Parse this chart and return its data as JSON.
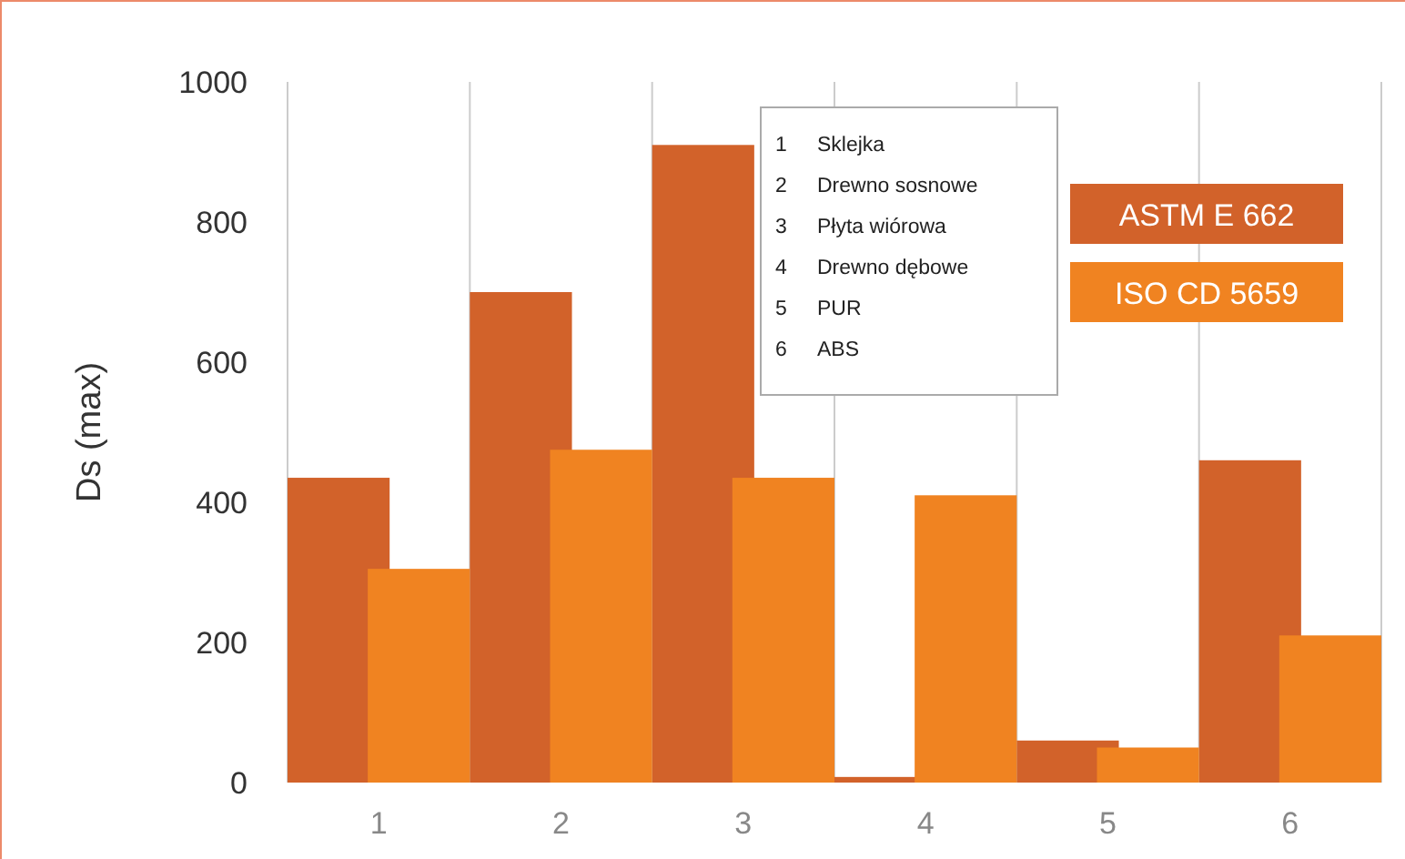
{
  "chart_data": {
    "type": "bar",
    "ylabel": "Ds (max)",
    "categories": [
      "1",
      "2",
      "3",
      "4",
      "5",
      "6"
    ],
    "series": [
      {
        "name": "ASTM E 662",
        "color": "#d2622a",
        "values": [
          435,
          700,
          910,
          8,
          60,
          460
        ]
      },
      {
        "name": "ISO CD 5659",
        "color": "#f08321",
        "values": [
          305,
          475,
          435,
          410,
          50,
          210
        ]
      }
    ],
    "ylim": [
      0,
      1000
    ],
    "yticks": [
      0,
      200,
      400,
      600,
      800,
      1000
    ],
    "grid": "x",
    "legend": "top right",
    "annotations": [
      "1\tSklejka",
      "2\tDrewno sosnowe",
      "3\tPłyta wiórowa",
      "4\tDrewno dębowe",
      "5\tPUR",
      "6\tABS"
    ]
  }
}
